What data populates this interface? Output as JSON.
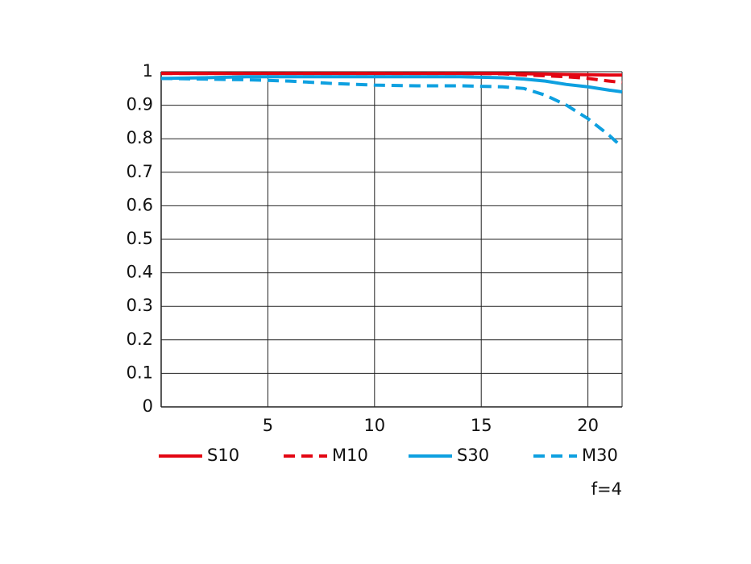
{
  "chart_data": {
    "type": "line",
    "annotation": "f=4",
    "x": [
      0,
      2,
      4,
      6,
      8,
      10,
      12,
      14,
      16,
      17,
      18,
      19,
      20,
      21,
      21.6
    ],
    "series": [
      {
        "name": "S10",
        "color": "#e30613",
        "dash": false,
        "values": [
          0.995,
          0.995,
          0.995,
          0.995,
          0.995,
          0.995,
          0.995,
          0.995,
          0.995,
          0.994,
          0.993,
          0.992,
          0.991,
          0.99,
          0.99
        ]
      },
      {
        "name": "M10",
        "color": "#e30613",
        "dash": true,
        "values": [
          0.995,
          0.995,
          0.995,
          0.995,
          0.995,
          0.995,
          0.995,
          0.995,
          0.994,
          0.99,
          0.988,
          0.985,
          0.98,
          0.972,
          0.968
        ]
      },
      {
        "name": "S30",
        "color": "#0ea0e0",
        "dash": false,
        "values": [
          0.98,
          0.982,
          0.985,
          0.985,
          0.985,
          0.985,
          0.985,
          0.985,
          0.982,
          0.978,
          0.972,
          0.962,
          0.955,
          0.945,
          0.94
        ]
      },
      {
        "name": "M30",
        "color": "#0ea0e0",
        "dash": true,
        "values": [
          0.98,
          0.978,
          0.976,
          0.972,
          0.965,
          0.96,
          0.958,
          0.958,
          0.955,
          0.95,
          0.93,
          0.9,
          0.86,
          0.81,
          0.775
        ]
      }
    ],
    "xlim": [
      0,
      21.6
    ],
    "xticks": [
      5,
      10,
      15,
      20
    ],
    "ylim": [
      0,
      1
    ],
    "yticks": [
      0,
      0.1,
      0.2,
      0.3,
      0.4,
      0.5,
      0.6,
      0.7,
      0.8,
      0.9,
      1
    ],
    "grid": true
  }
}
